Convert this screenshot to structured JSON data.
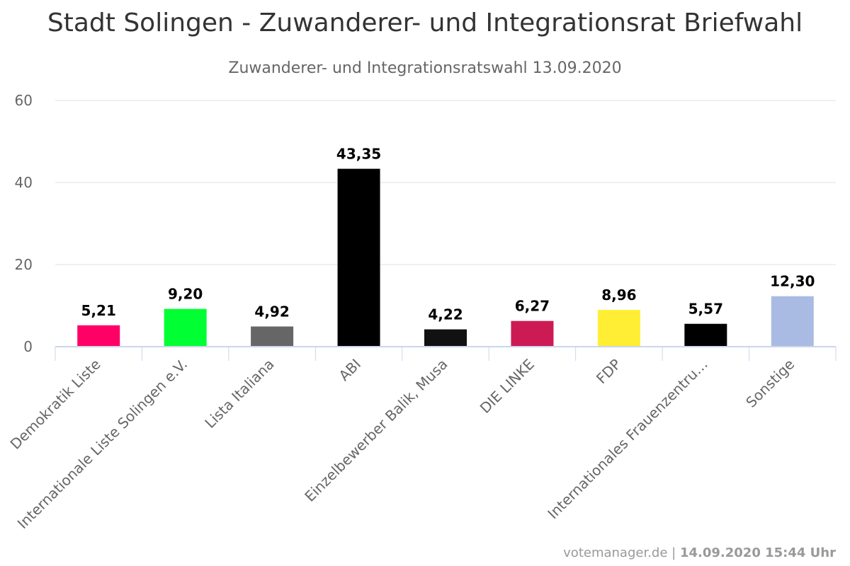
{
  "header": {
    "title": "Stadt Solingen - Zuwanderer- und Integrationsrat Briefwahl",
    "subtitle": "Zuwanderer- und Integrationsratswahl 13.09.2020"
  },
  "footer": {
    "source": "votemanager.de",
    "separator": "|",
    "timestamp": "14.09.2020 15:44 Uhr"
  },
  "chart_data": {
    "type": "bar",
    "title": "Stadt Solingen - Zuwanderer- und Integrationsrat Briefwahl",
    "subtitle": "Zuwanderer- und Integrationsratswahl 13.09.2020",
    "xlabel": "",
    "ylabel": "",
    "ylim": [
      0,
      60
    ],
    "yticks": [
      0,
      20,
      40,
      60
    ],
    "grid": true,
    "legend": "none",
    "categories": [
      "Demokratik Liste",
      "Internationale Liste Solingen e.V.",
      "Lista Italiana",
      "ABI",
      "Einzelbewerber Balik, Musa",
      "DIE LINKE",
      "FDP",
      "Internationales Frauenzentru…",
      "Sonstige"
    ],
    "values": [
      5.21,
      9.2,
      4.92,
      43.35,
      4.22,
      6.27,
      8.96,
      5.57,
      12.3
    ],
    "value_labels": [
      "5,21",
      "9,20",
      "4,92",
      "43,35",
      "4,22",
      "6,27",
      "8,96",
      "5,57",
      "12,30"
    ],
    "colors": [
      "#ff0066",
      "#00ff33",
      "#666666",
      "#000000",
      "#111111",
      "#cc1a55",
      "#ffee33",
      "#000000",
      "#aabbe3"
    ]
  }
}
